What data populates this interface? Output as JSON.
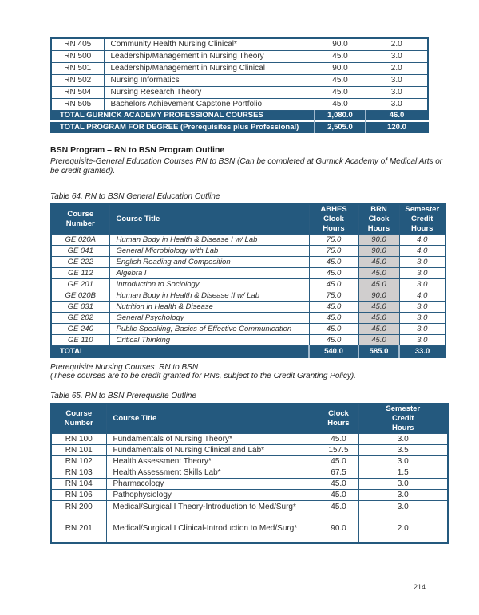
{
  "colors": {
    "header_blue": "#24597E",
    "border_blue": "#2A5C80",
    "gray_cell": "#D0CECE",
    "total_divider_light_blue": "#9FB8CC"
  },
  "page": {
    "number": "214"
  },
  "professional_table": {
    "rows": [
      {
        "number": "RN 405",
        "title": "Community Health Nursing Clinical*",
        "hours": "90.0",
        "credits": "2.0"
      },
      {
        "number": "RN 500",
        "title": "Leadership/Management in Nursing Theory",
        "hours": "45.0",
        "credits": "3.0"
      },
      {
        "number": "RN 501",
        "title": "Leadership/Management in Nursing Clinical",
        "hours": "90.0",
        "credits": "2.0"
      },
      {
        "number": "RN 502",
        "title": "Nursing Informatics",
        "hours": "45.0",
        "credits": "3.0"
      },
      {
        "number": "RN 504",
        "title": "Nursing Research Theory",
        "hours": "45.0",
        "credits": "3.0"
      },
      {
        "number": "RN 505",
        "title": "Bachelors Achievement Capstone Portfolio",
        "hours": "45.0",
        "credits": "3.0"
      }
    ],
    "totals": [
      {
        "label": "TOTAL GURNICK ACADEMY PROFESSIONAL COURSES",
        "hours": "1,080.0",
        "credits": "46.0"
      },
      {
        "label": "TOTAL PROGRAM FOR DEGREE (Prerequisites plus Professional)",
        "hours": "2,505.0",
        "credits": "120.0"
      }
    ]
  },
  "section": {
    "heading": "BSN Program – RN to BSN Program Outline",
    "intro": "Prerequisite-General Education Courses RN to BSN (Can be completed at Gurnick Academy of Medical Arts or be credit granted).",
    "table64_caption": "Table 64. RN to BSN General Education Outline",
    "prereq_note_line1": "Prerequisite Nursing Courses: RN to BSN",
    "prereq_note_line2": "(These courses are to be credit granted for RNs, subject to the Credit Granting Policy).",
    "table65_caption": "Table 65. RN to BSN Prerequisite Outline"
  },
  "table64": {
    "headers": {
      "number": "Course\nNumber",
      "title": "Course Title",
      "abhes": "ABHES\nClock\nHours",
      "brn": "BRN\nClock\nHours",
      "semester": "Semester\nCredit\nHours"
    },
    "rows": [
      {
        "number": "GE 020A",
        "title": "Human Body in Health & Disease I w/ Lab",
        "abhes": "75.0",
        "brn": "90.0",
        "semester": "4.0"
      },
      {
        "number": "GE 041",
        "title": "General Microbiology with Lab",
        "abhes": "75.0",
        "brn": "90.0",
        "semester": "4.0"
      },
      {
        "number": "GE 222",
        "title": "English Reading and Composition",
        "abhes": "45.0",
        "brn": "45.0",
        "semester": "3.0"
      },
      {
        "number": "GE 112",
        "title": "Algebra I",
        "abhes": "45.0",
        "brn": "45.0",
        "semester": "3.0"
      },
      {
        "number": "GE 201",
        "title": "Introduction to Sociology",
        "abhes": "45.0",
        "brn": "45.0",
        "semester": "3.0"
      },
      {
        "number": "GE 020B",
        "title": "Human Body in Health & Disease II w/ Lab",
        "abhes": "75.0",
        "brn": "90.0",
        "semester": "4.0"
      },
      {
        "number": "GE 031",
        "title": "Nutrition in Health & Disease",
        "abhes": "45.0",
        "brn": "45.0",
        "semester": "3.0"
      },
      {
        "number": "GE 202",
        "title": "General Psychology",
        "abhes": "45.0",
        "brn": "45.0",
        "semester": "3.0"
      },
      {
        "number": "GE 240",
        "title": "Public Speaking, Basics of Effective Communication",
        "abhes": "45.0",
        "brn": "45.0",
        "semester": "3.0"
      },
      {
        "number": "GE 110",
        "title": "Critical Thinking",
        "abhes": "45.0",
        "brn": "45.0",
        "semester": "3.0"
      }
    ],
    "total": {
      "label": "TOTAL",
      "abhes": "540.0",
      "brn": "585.0",
      "semester": "33.0"
    }
  },
  "table65": {
    "headers": {
      "number": "Course\nNumber",
      "title": "Course Title",
      "clock": "Clock\nHours",
      "semester": "Semester\nCredit\nHours"
    },
    "rows": [
      {
        "number": "RN 100",
        "title": "Fundamentals of Nursing Theory*",
        "clock": "45.0",
        "semester": "3.0"
      },
      {
        "number": "RN 101",
        "title": "Fundamentals of Nursing Clinical and Lab*",
        "clock": "157.5",
        "semester": "3.5"
      },
      {
        "number": "RN 102",
        "title": "Health Assessment Theory*",
        "clock": "45.0",
        "semester": "3.0"
      },
      {
        "number": "RN 103",
        "title": "Health Assessment Skills Lab*",
        "clock": "67.5",
        "semester": "1.5"
      },
      {
        "number": "RN 104",
        "title": "Pharmacology",
        "clock": "45.0",
        "semester": "3.0"
      },
      {
        "number": "RN 106",
        "title": "Pathophysiology",
        "clock": "45.0",
        "semester": "3.0"
      },
      {
        "number": "RN 200",
        "title": "Medical/Surgical I Theory-Introduction to Med/Surg*",
        "clock": "45.0",
        "semester": "3.0"
      },
      {
        "number": "RN 201",
        "title": "Medical/Surgical I Clinical-Introduction to Med/Surg*",
        "clock": "90.0",
        "semester": "2.0"
      }
    ]
  }
}
